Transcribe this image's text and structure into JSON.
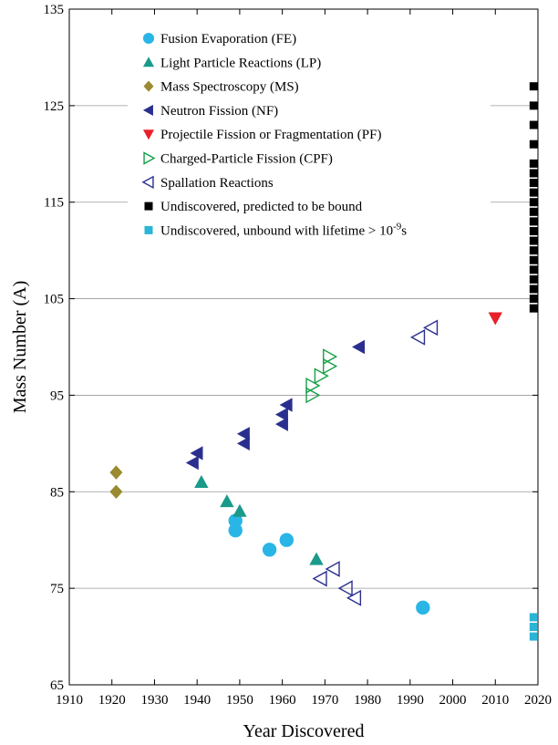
{
  "chart_data": {
    "type": "scatter",
    "title": "",
    "xlabel": "Year Discovered",
    "ylabel": "Mass Number (A)",
    "xlim": [
      1910,
      2020
    ],
    "ylim": [
      65,
      135
    ],
    "xticks": [
      "1910",
      "1920",
      "1930",
      "1940",
      "1950",
      "1960",
      "1970",
      "1980",
      "1990",
      "2000",
      "2010",
      "2020"
    ],
    "yticks": [
      "65",
      "75",
      "85",
      "95",
      "105",
      "115",
      "125",
      "135"
    ],
    "grid": "horizontal",
    "legend_position": "top-left",
    "series": [
      {
        "name": "Fusion Evaporation (FE)",
        "marker": "circle",
        "filled": true,
        "color": "#29b6e6",
        "points": [
          [
            1949,
            82
          ],
          [
            1949,
            81
          ],
          [
            1957,
            79
          ],
          [
            1961,
            80
          ],
          [
            1993,
            73
          ]
        ]
      },
      {
        "name": "Light Particle Reactions (LP)",
        "marker": "triangle-up",
        "filled": true,
        "color": "#1a9a8a",
        "points": [
          [
            1941,
            86
          ],
          [
            1947,
            84
          ],
          [
            1950,
            83
          ],
          [
            1968,
            78
          ]
        ]
      },
      {
        "name": "Mass Spectroscopy (MS)",
        "marker": "diamond",
        "filled": true,
        "color": "#9a8a30",
        "points": [
          [
            1921,
            87
          ],
          [
            1921,
            85
          ]
        ]
      },
      {
        "name": "Neutron Fission (NF)",
        "marker": "triangle-left",
        "filled": true,
        "color": "#2a2f8f",
        "points": [
          [
            1940,
            89
          ],
          [
            1939,
            88
          ],
          [
            1951,
            91
          ],
          [
            1951,
            90
          ],
          [
            1960,
            93
          ],
          [
            1961,
            94
          ],
          [
            1960,
            92
          ],
          [
            1978,
            100
          ]
        ]
      },
      {
        "name": "Projectile Fission or Fragmentation (PF)",
        "marker": "triangle-down",
        "filled": true,
        "color": "#e8202a",
        "points": [
          [
            2010,
            103
          ]
        ]
      },
      {
        "name": "Charged-Particle Fission (CPF)",
        "marker": "triangle-right",
        "filled": false,
        "color": "#16a048",
        "points": [
          [
            1971,
            99
          ],
          [
            1971,
            98
          ],
          [
            1969,
            97
          ],
          [
            1967,
            96
          ],
          [
            1967,
            95
          ]
        ]
      },
      {
        "name": "Spallation Reactions",
        "marker": "triangle-left",
        "filled": false,
        "color": "#2a2f8f",
        "points": [
          [
            1992,
            101
          ],
          [
            1995,
            102
          ],
          [
            1969,
            76
          ],
          [
            1972,
            77
          ],
          [
            1975,
            75
          ],
          [
            1977,
            74
          ]
        ]
      },
      {
        "name": "Undiscovered, predicted to be bound",
        "marker": "square",
        "filled": true,
        "color": "#000000",
        "points": [
          [
            2019,
            127
          ],
          [
            2019,
            125
          ],
          [
            2019,
            123
          ],
          [
            2019,
            121
          ],
          [
            2019,
            119
          ],
          [
            2019,
            118
          ],
          [
            2019,
            117
          ],
          [
            2019,
            116
          ],
          [
            2019,
            115
          ],
          [
            2019,
            114
          ],
          [
            2019,
            113
          ],
          [
            2019,
            112
          ],
          [
            2019,
            111
          ],
          [
            2019,
            110
          ],
          [
            2019,
            109
          ],
          [
            2019,
            108
          ],
          [
            2019,
            107
          ],
          [
            2019,
            106
          ],
          [
            2019,
            105
          ],
          [
            2019,
            104
          ]
        ]
      },
      {
        "name": "Undiscovered, unbound with lifetime > 10",
        "name_sup": "-9",
        "name_tail": "s",
        "marker": "square",
        "filled": true,
        "color": "#29b6d6",
        "points": [
          [
            2019,
            72
          ],
          [
            2019,
            71
          ],
          [
            2019,
            70
          ]
        ]
      }
    ]
  }
}
